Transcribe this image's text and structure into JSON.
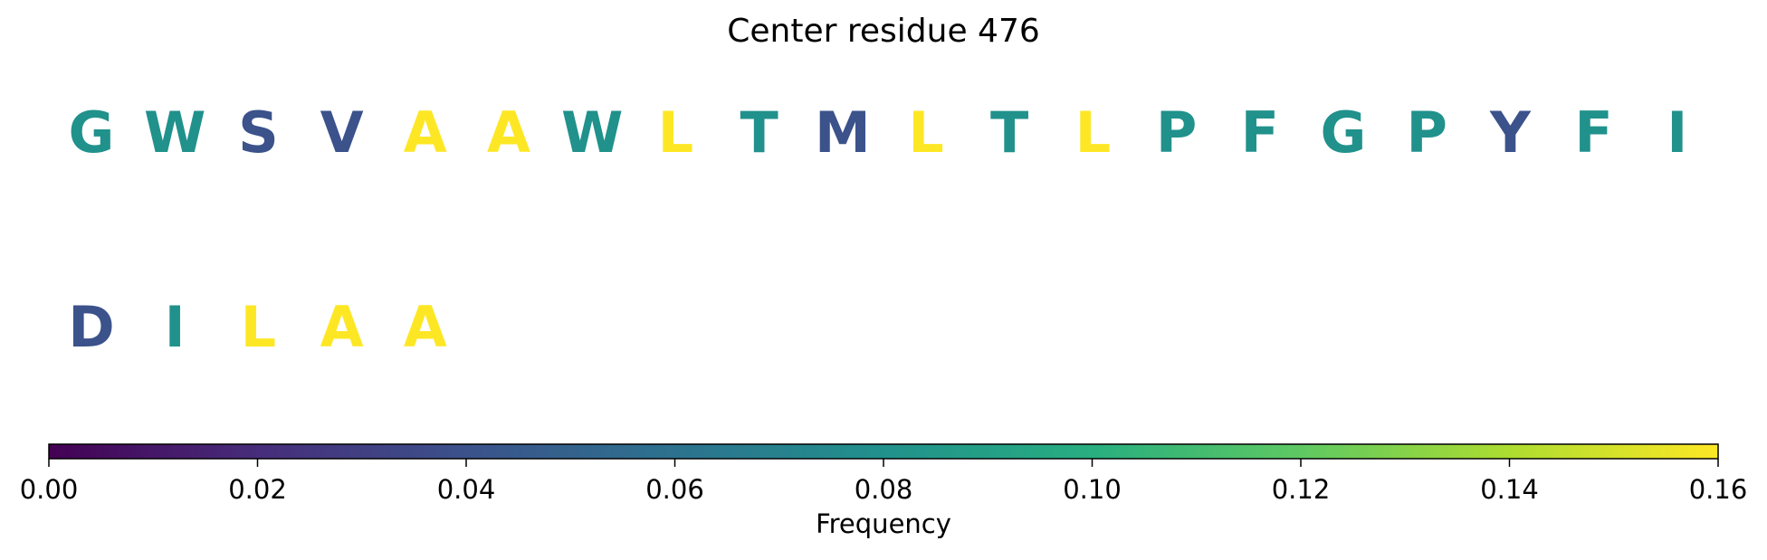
{
  "chart_data": {
    "type": "heatmap",
    "title": "Center residue 476",
    "colorbar": {
      "label": "Frequency",
      "range": [
        0,
        0.16
      ],
      "ticks": [
        "0.00",
        "0.02",
        "0.04",
        "0.06",
        "0.08",
        "0.10",
        "0.12",
        "0.14",
        "0.16"
      ],
      "colormap": "viridis"
    },
    "rows": [
      {
        "residues": [
          {
            "letter": "G",
            "frequency": 0.08
          },
          {
            "letter": "W",
            "frequency": 0.08
          },
          {
            "letter": "S",
            "frequency": 0.04
          },
          {
            "letter": "V",
            "frequency": 0.04
          },
          {
            "letter": "A",
            "frequency": 0.16
          },
          {
            "letter": "A",
            "frequency": 0.16
          },
          {
            "letter": "W",
            "frequency": 0.08
          },
          {
            "letter": "L",
            "frequency": 0.16
          },
          {
            "letter": "T",
            "frequency": 0.08
          },
          {
            "letter": "M",
            "frequency": 0.04
          },
          {
            "letter": "L",
            "frequency": 0.16
          },
          {
            "letter": "T",
            "frequency": 0.08
          },
          {
            "letter": "L",
            "frequency": 0.16
          },
          {
            "letter": "P",
            "frequency": 0.08
          },
          {
            "letter": "F",
            "frequency": 0.08
          },
          {
            "letter": "G",
            "frequency": 0.08
          },
          {
            "letter": "P",
            "frequency": 0.08
          },
          {
            "letter": "Y",
            "frequency": 0.04
          },
          {
            "letter": "F",
            "frequency": 0.08
          },
          {
            "letter": "I",
            "frequency": 0.08
          }
        ]
      },
      {
        "residues": [
          {
            "letter": "D",
            "frequency": 0.04
          },
          {
            "letter": "I",
            "frequency": 0.08
          },
          {
            "letter": "L",
            "frequency": 0.16
          },
          {
            "letter": "A",
            "frequency": 0.16
          },
          {
            "letter": "A",
            "frequency": 0.16
          }
        ]
      }
    ]
  }
}
